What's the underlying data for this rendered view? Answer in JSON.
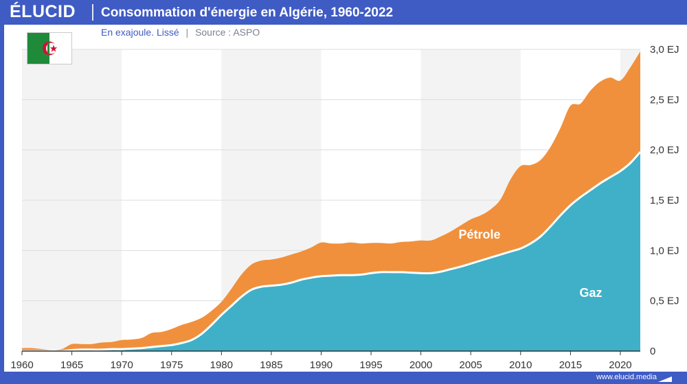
{
  "header": {
    "brand": "ÉLUCID",
    "title": "Consommation d'énergie en Algérie, 1960-2022"
  },
  "subtitle": {
    "unit_text": "En exajoule. Lissé",
    "separator": "|",
    "source_text": "Source : ASPO"
  },
  "flag": {
    "icon": "algeria-flag-icon"
  },
  "footer": {
    "url": "www.elucid.media"
  },
  "colors": {
    "accent": "#3f5bc4",
    "gaz": "#3fb0c8",
    "petrole": "#f0903c",
    "band": "#f3f3f3"
  },
  "chart_data": {
    "type": "area",
    "stacked": true,
    "x": [
      1960,
      1961,
      1962,
      1963,
      1964,
      1965,
      1966,
      1967,
      1968,
      1969,
      1970,
      1971,
      1972,
      1973,
      1974,
      1975,
      1976,
      1977,
      1978,
      1979,
      1980,
      1981,
      1982,
      1983,
      1984,
      1985,
      1986,
      1987,
      1988,
      1989,
      1990,
      1991,
      1992,
      1993,
      1994,
      1995,
      1996,
      1997,
      1998,
      1999,
      2000,
      2001,
      2002,
      2003,
      2004,
      2005,
      2006,
      2007,
      2008,
      2009,
      2010,
      2011,
      2012,
      2013,
      2014,
      2015,
      2016,
      2017,
      2018,
      2019,
      2020,
      2021,
      2022
    ],
    "series": [
      {
        "name": "Gaz",
        "values": [
          0.0,
          0.0,
          0.0,
          0.0,
          0.0,
          0.01,
          0.015,
          0.015,
          0.015,
          0.02,
          0.02,
          0.025,
          0.03,
          0.04,
          0.05,
          0.06,
          0.08,
          0.11,
          0.17,
          0.26,
          0.36,
          0.45,
          0.54,
          0.61,
          0.64,
          0.65,
          0.66,
          0.68,
          0.71,
          0.73,
          0.745,
          0.75,
          0.755,
          0.755,
          0.76,
          0.775,
          0.785,
          0.785,
          0.785,
          0.78,
          0.775,
          0.775,
          0.79,
          0.815,
          0.84,
          0.87,
          0.9,
          0.93,
          0.96,
          0.99,
          1.02,
          1.07,
          1.14,
          1.24,
          1.35,
          1.45,
          1.53,
          1.6,
          1.67,
          1.73,
          1.79,
          1.87,
          1.98
        ]
      },
      {
        "name": "Pétrole",
        "values": [
          0.03,
          0.03,
          0.02,
          0.01,
          0.02,
          0.06,
          0.055,
          0.055,
          0.07,
          0.07,
          0.09,
          0.09,
          0.1,
          0.14,
          0.14,
          0.16,
          0.18,
          0.18,
          0.16,
          0.14,
          0.13,
          0.17,
          0.22,
          0.25,
          0.26,
          0.26,
          0.27,
          0.28,
          0.28,
          0.3,
          0.335,
          0.32,
          0.315,
          0.325,
          0.31,
          0.3,
          0.29,
          0.285,
          0.3,
          0.31,
          0.325,
          0.325,
          0.35,
          0.375,
          0.41,
          0.44,
          0.45,
          0.48,
          0.55,
          0.72,
          0.82,
          0.78,
          0.76,
          0.79,
          0.87,
          0.99,
          0.93,
          0.99,
          1.01,
          0.99,
          0.9,
          0.95,
          1.0
        ]
      }
    ],
    "series_labels": [
      "Gaz",
      "Pétrole"
    ],
    "xlim": [
      1960,
      2022
    ],
    "ylim": [
      0,
      3.0
    ],
    "x_ticks": [
      "1960",
      "1965",
      "1970",
      "1975",
      "1980",
      "1985",
      "1990",
      "1995",
      "2000",
      "2005",
      "2010",
      "2015",
      "2020"
    ],
    "y_ticks": [
      "0",
      "0,5 EJ",
      "1,0 EJ",
      "1,5 EJ",
      "2,0 EJ",
      "2,5 EJ",
      "3,0 EJ"
    ],
    "grid": true,
    "alternating_bands": true
  }
}
